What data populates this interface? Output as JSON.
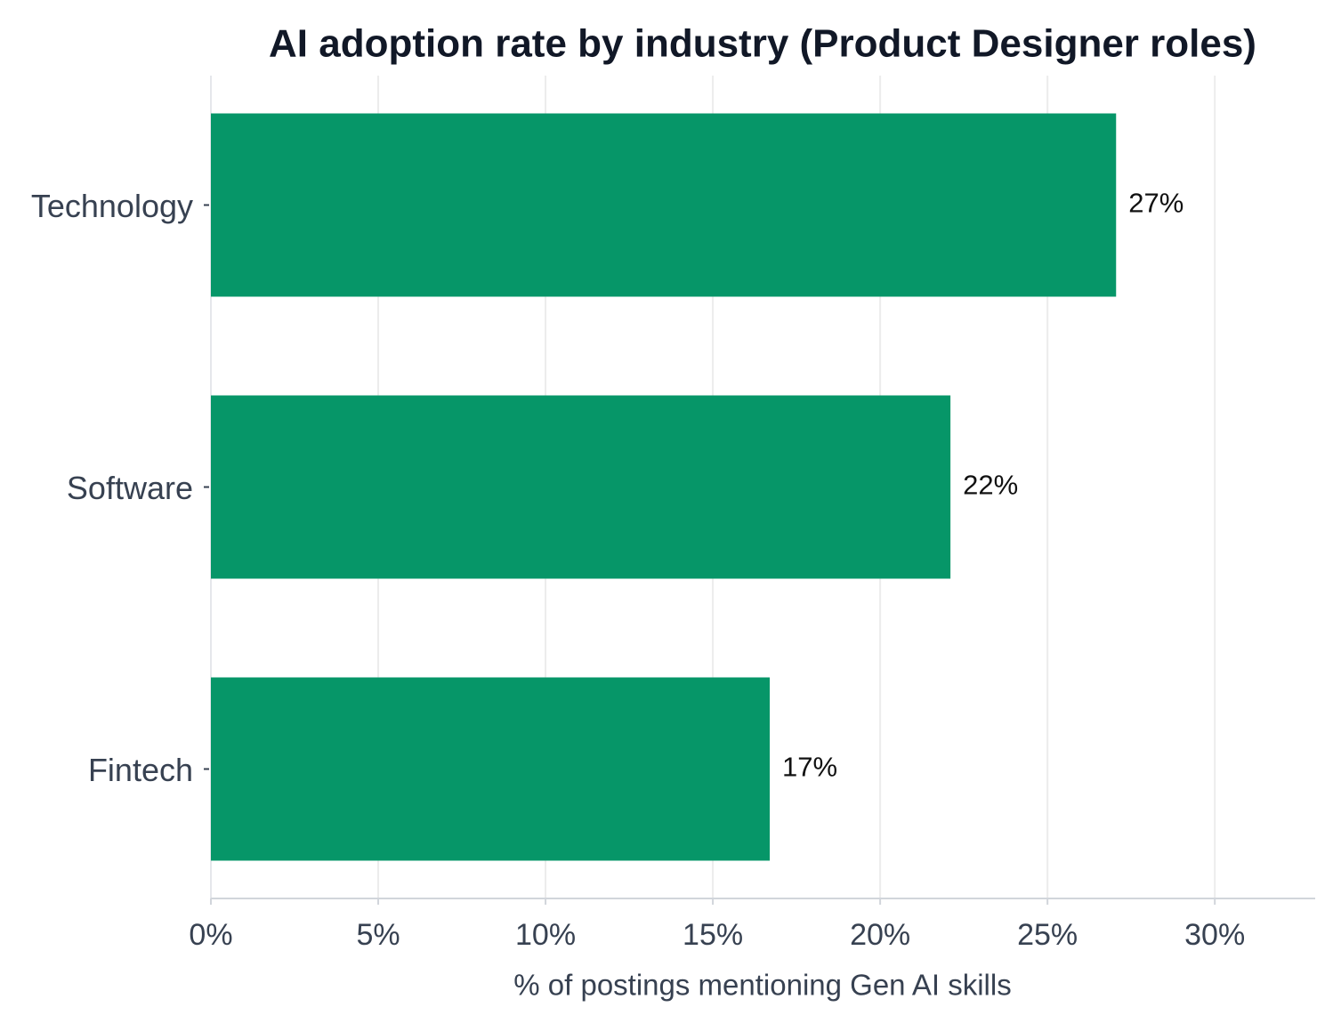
{
  "chart_data": {
    "type": "bar",
    "orientation": "horizontal",
    "title": "AI adoption rate by industry (Product Designer roles)",
    "x_label": "% of postings mentioning Gen AI skills",
    "categories": [
      "Technology",
      "Software",
      "Fintech"
    ],
    "values": [
      27.05,
      22.1,
      16.7
    ],
    "value_labels": [
      "27%",
      "22%",
      "17%"
    ],
    "color": "#069668",
    "xlim": [
      0,
      33
    ],
    "xticks": [
      {
        "value": 0,
        "label": "0%"
      },
      {
        "value": 5,
        "label": "5%"
      },
      {
        "value": 10,
        "label": "10%"
      },
      {
        "value": 15,
        "label": "15%"
      },
      {
        "value": 20,
        "label": "20%"
      },
      {
        "value": 25,
        "label": "25%"
      },
      {
        "value": 30,
        "label": "30%"
      }
    ],
    "grid": true
  }
}
